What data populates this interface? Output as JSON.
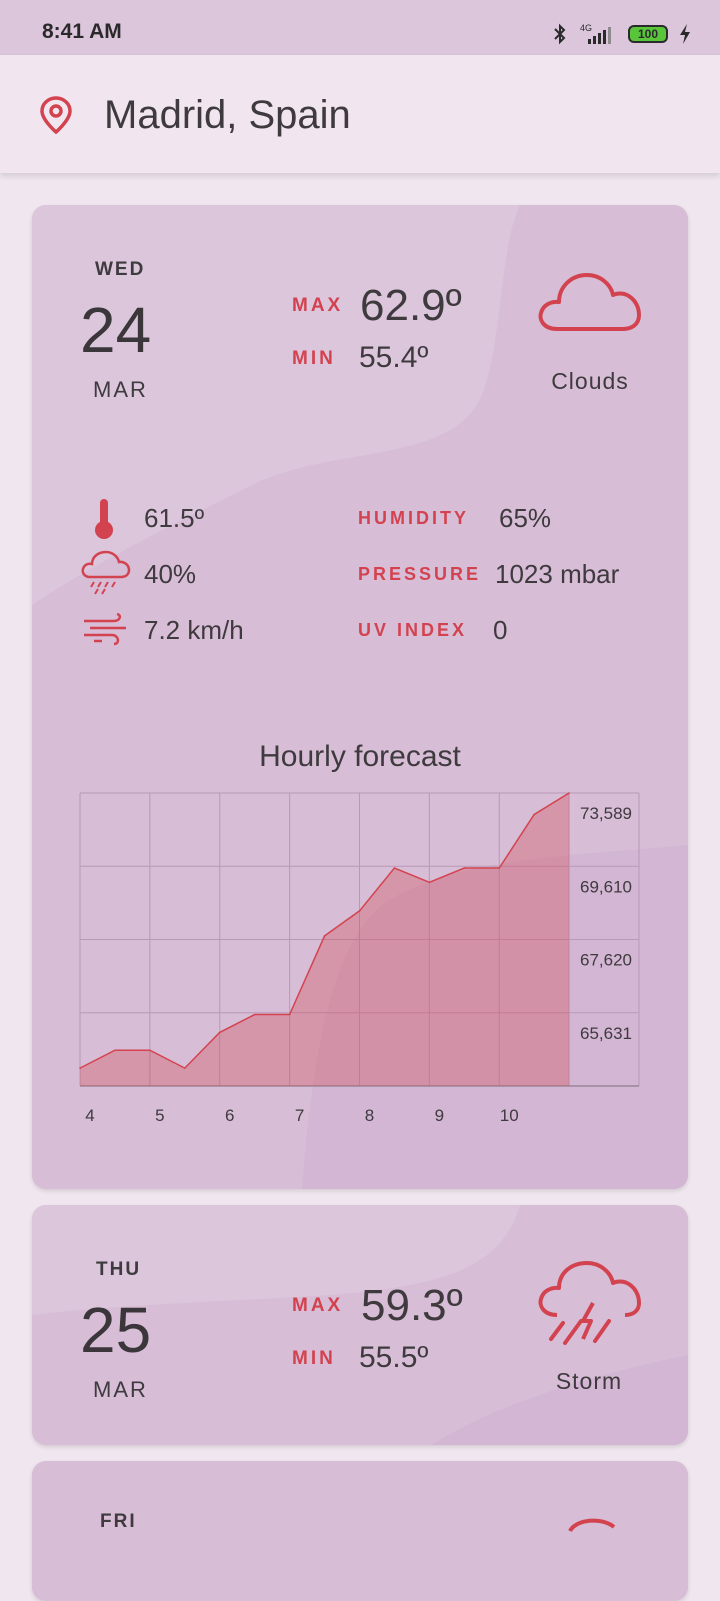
{
  "status_bar": {
    "time": "8:41 AM",
    "battery": "100",
    "network": "4G"
  },
  "header": {
    "location": "Madrid, Spain"
  },
  "colors": {
    "accent": "#d3434f",
    "card": "#d7bdd6",
    "background": "#f0e6ef"
  },
  "days": [
    {
      "dow": "WED",
      "day": "24",
      "month": "MAR",
      "max_label": "MAX",
      "max": "62.9º",
      "min_label": "MIN",
      "min": "55.4º",
      "condition": "Clouds",
      "condition_icon": "cloud-icon",
      "details": {
        "temperature": "61.5º",
        "precipitation": "40%",
        "wind": "7.2 km/h",
        "humidity_label": "HUMIDITY",
        "humidity": "65%",
        "pressure_label": "PRESSURE",
        "pressure": "1023 mbar",
        "uv_label": "UV INDEX",
        "uv": "0"
      },
      "chart_title": "Hourly forecast"
    },
    {
      "dow": "THU",
      "day": "25",
      "month": "MAR",
      "max_label": "MAX",
      "max": "59.3º",
      "min_label": "MIN",
      "min": "55.5º",
      "condition": "Storm",
      "condition_icon": "storm-icon"
    },
    {
      "dow": "FRI"
    }
  ],
  "chart_data": {
    "type": "area",
    "title": "Hourly forecast",
    "x_ticks": [
      "4",
      "5",
      "6",
      "7",
      "8",
      "9",
      "10"
    ],
    "y_ticks": [
      "73,589",
      "69,610",
      "67,620",
      "65,631"
    ],
    "x": [
      4,
      4.5,
      5,
      5.5,
      6,
      6.5,
      7,
      7.5,
      8,
      8.5,
      9,
      9.5,
      10,
      10.5,
      11
    ],
    "values": [
      63900,
      64400,
      64400,
      63900,
      64900,
      65400,
      65400,
      67600,
      68300,
      69500,
      69100,
      69500,
      69500,
      71000,
      71600
    ],
    "ylim": [
      63400,
      71600
    ],
    "color": "#d3434f",
    "grid": true
  }
}
